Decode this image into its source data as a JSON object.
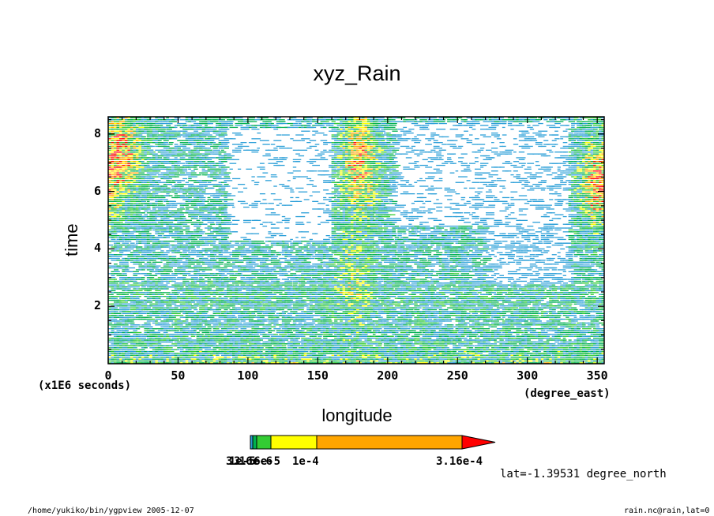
{
  "chart_data": {
    "type": "heatmap",
    "title": "xyz_Rain",
    "xlabel": "longitude",
    "ylabel": "time",
    "x_units": "(degree_east)",
    "y_units": "(x1E6 seconds)",
    "xlim": [
      0,
      355
    ],
    "ylim": [
      0,
      8.6
    ],
    "x_ticks": [
      0,
      50,
      100,
      150,
      200,
      250,
      300,
      350
    ],
    "y_ticks": [
      2,
      4,
      6,
      8
    ],
    "colorbar": {
      "labels": [
        "3.16e-6",
        "1e-5",
        "3.16e-5",
        "1e-4",
        "3.16e-4"
      ],
      "colors": [
        "#2b9fd8",
        "#00b050",
        "#33cc33",
        "#ffff00",
        "#ffa500",
        "#ff0000"
      ]
    },
    "features": [
      {
        "lon": 10,
        "time_range": [
          6.0,
          8.6
        ],
        "level": "high"
      },
      {
        "lon": 180,
        "time_range": [
          5.5,
          8.6
        ],
        "level": "high"
      },
      {
        "lon": 350,
        "time_range": [
          5.0,
          7.5
        ],
        "level": "high"
      },
      {
        "lon": 175,
        "time_range": [
          1.5,
          4.5
        ],
        "level": "medium"
      }
    ]
  },
  "annotations": {
    "lat_note": "lat=-1.39531 degree_north",
    "path": "/home/yukiko/bin/ygpview  2005-12-07",
    "source": "rain.nc@rain,lat=0"
  }
}
